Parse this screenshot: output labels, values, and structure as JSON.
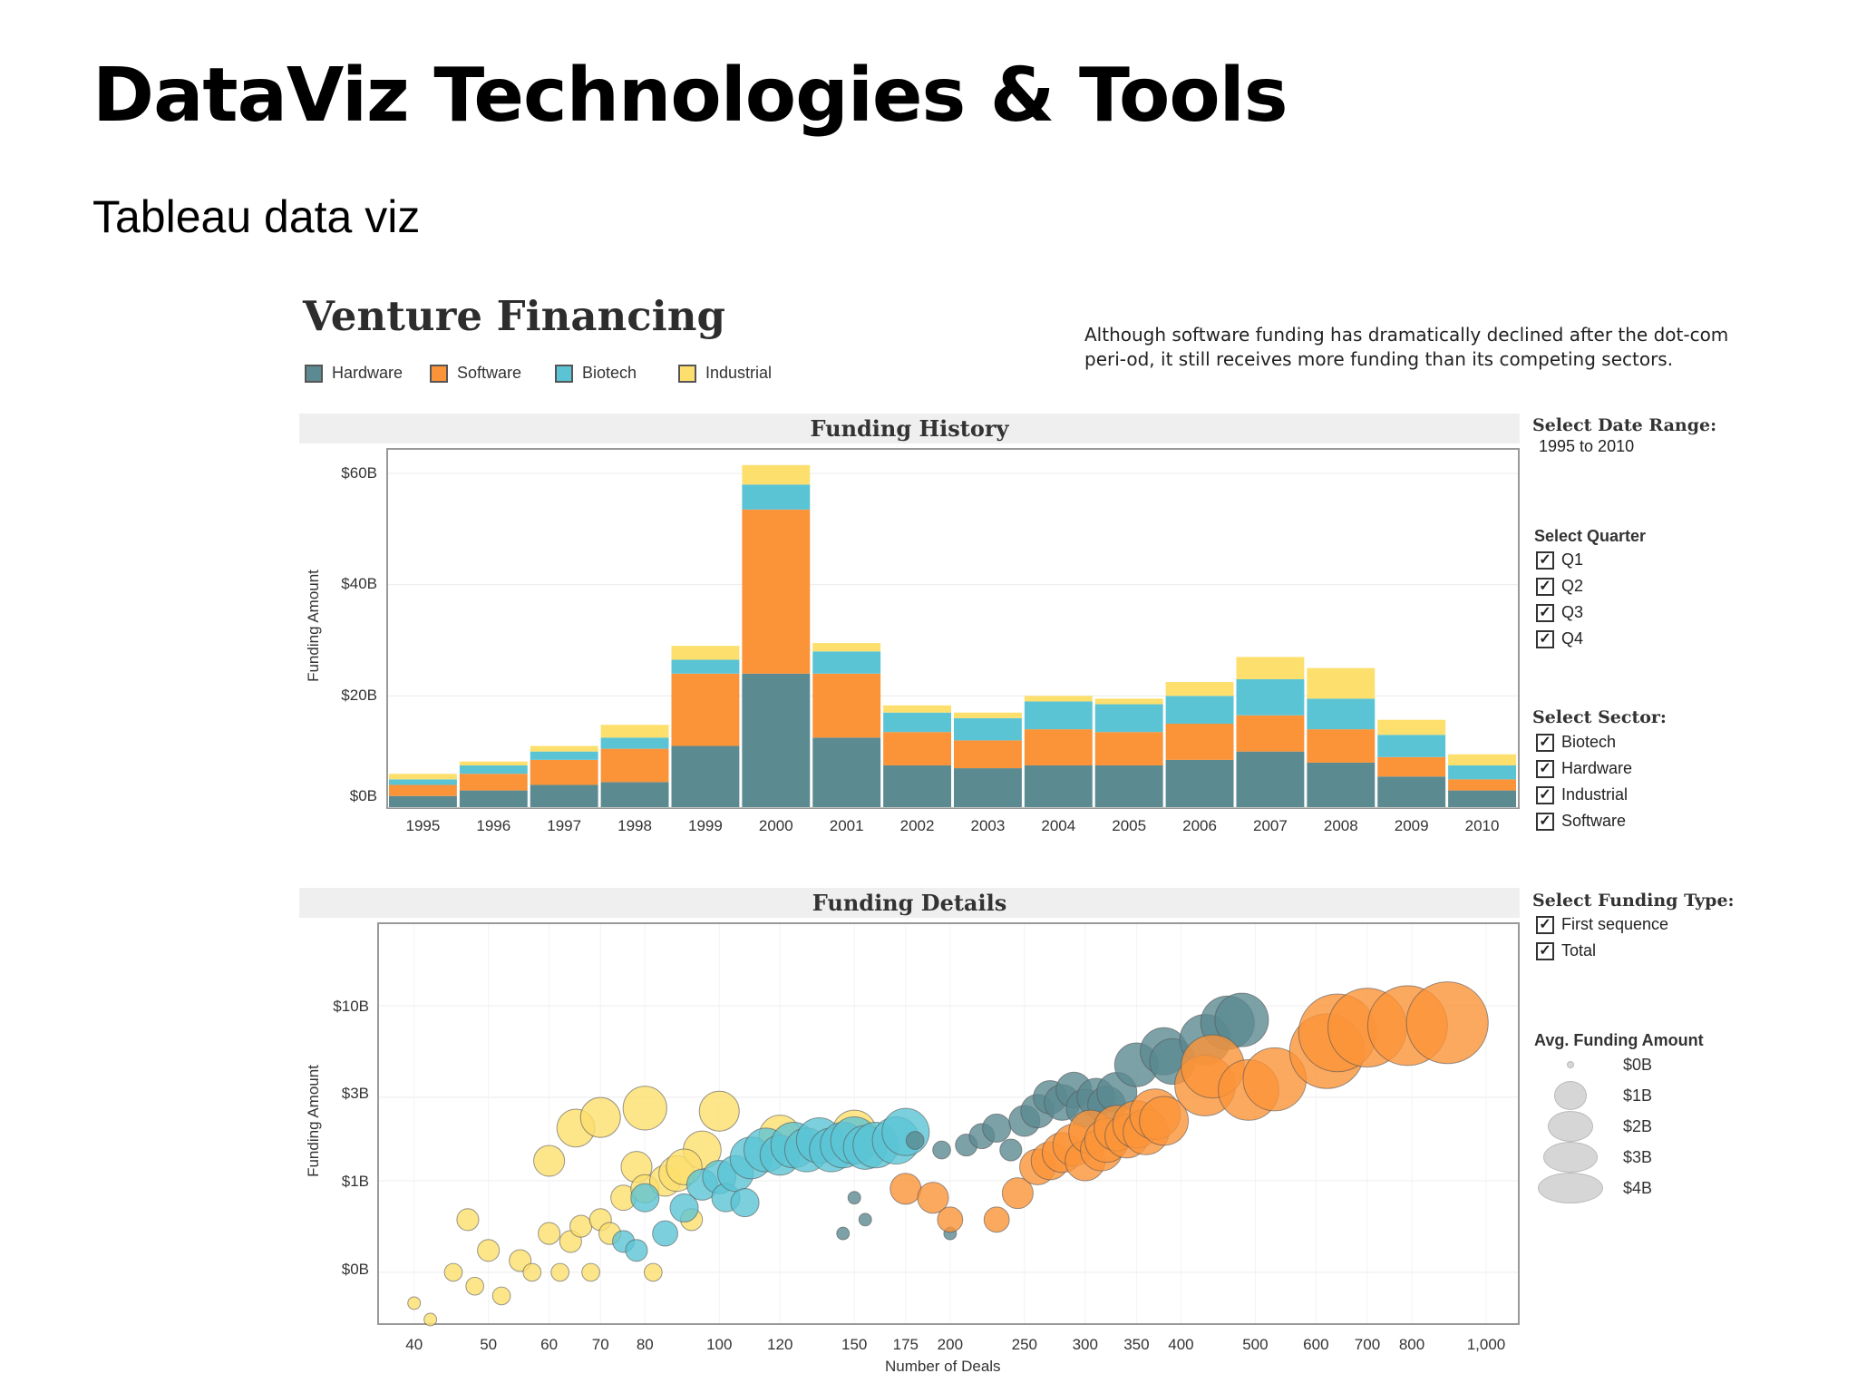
{
  "slide": {
    "title": "DataViz Technologies & Tools",
    "subtitle": "Tableau data viz"
  },
  "dashboard": {
    "title": "Venture Financing",
    "annotation": "Although software funding has dramatically declined after the dot-com peri-od, it still receives more funding than its competing sectors.",
    "legend": [
      {
        "label": "Hardware",
        "color": "#5b8a91"
      },
      {
        "label": "Software",
        "color": "#fb9338"
      },
      {
        "label": "Biotech",
        "color": "#5bc4d4"
      },
      {
        "label": "Industrial",
        "color": "#fddf6d"
      }
    ]
  },
  "funding_history": {
    "header": "Funding History",
    "y_axis_title": "Funding Amount",
    "y_ticks": [
      "$60B",
      "$40B",
      "$20B",
      "$0B"
    ]
  },
  "funding_details": {
    "header": "Funding Details",
    "y_axis_title": "Funding Amount",
    "x_axis_title": "Number of Deals",
    "y_ticks": [
      "$10B",
      "$3B",
      "$1B",
      "$0B"
    ],
    "x_ticks": [
      "40",
      "50",
      "60",
      "70",
      "80",
      "100",
      "120",
      "150",
      "175",
      "200",
      "250",
      "300",
      "350",
      "400",
      "500",
      "600",
      "700",
      "800",
      "1,000"
    ]
  },
  "controls": {
    "date_range": {
      "label": "Select Date Range:",
      "value": "1995 to 2010"
    },
    "quarter": {
      "label": "Select Quarter",
      "options": [
        {
          "label": "Q1",
          "checked": true
        },
        {
          "label": "Q2",
          "checked": true
        },
        {
          "label": "Q3",
          "checked": true
        },
        {
          "label": "Q4",
          "checked": true
        }
      ]
    },
    "sector": {
      "label": "Select Sector:",
      "options": [
        {
          "label": "Biotech",
          "checked": true
        },
        {
          "label": "Hardware",
          "checked": true
        },
        {
          "label": "Industrial",
          "checked": true
        },
        {
          "label": "Software",
          "checked": true
        }
      ]
    },
    "funding_type": {
      "label": "Select Funding Type:",
      "options": [
        {
          "label": "First sequence",
          "checked": true
        },
        {
          "label": "Total",
          "checked": true
        }
      ]
    },
    "size_legend": {
      "label": "Avg. Funding Amount",
      "entries": [
        "$0B",
        "$1B",
        "$2B",
        "$3B",
        "$4B"
      ]
    }
  },
  "chart_data": [
    {
      "type": "bar",
      "title": "Funding History",
      "ylabel": "Funding Amount",
      "ylim": [
        0,
        64
      ],
      "units": "billions USD",
      "stacked": true,
      "categories": [
        "1995",
        "1996",
        "1997",
        "1998",
        "1999",
        "2000",
        "2001",
        "2002",
        "2003",
        "2004",
        "2005",
        "2006",
        "2007",
        "2008",
        "2009",
        "2010"
      ],
      "series": [
        {
          "name": "Hardware",
          "color": "#5b8a91",
          "values": [
            2,
            3,
            4,
            4.5,
            11,
            24,
            12.5,
            7.5,
            7,
            7.5,
            7.5,
            8.5,
            10,
            8,
            5.5,
            3
          ]
        },
        {
          "name": "Software",
          "color": "#fb9338",
          "values": [
            2,
            3,
            4.5,
            6,
            13,
            29.5,
            11.5,
            6,
            5,
            6.5,
            6,
            6.5,
            6.5,
            6,
            3.5,
            2
          ]
        },
        {
          "name": "Biotech",
          "color": "#5bc4d4",
          "values": [
            1,
            1.5,
            1.5,
            2,
            2.5,
            4.5,
            4,
            3.5,
            4,
            5,
            5,
            5,
            6.5,
            5.5,
            4,
            2.5
          ]
        },
        {
          "name": "Industrial",
          "color": "#fddf6d",
          "values": [
            1,
            0.7,
            1,
            2.3,
            2.5,
            3.5,
            1.5,
            1.3,
            1,
            1,
            1,
            2.5,
            4,
            5.5,
            2.7,
            2
          ]
        }
      ]
    },
    {
      "type": "scatter",
      "title": "Funding Details",
      "xlabel": "Number of Deals",
      "ylabel": "Funding Amount",
      "x_scale": "log",
      "y_scale": "log",
      "xlim": [
        40,
        1000
      ],
      "size_by": "Avg. Funding Amount",
      "series": [
        {
          "name": "Industrial",
          "color": "#fddf6d",
          "points": [
            [
              40,
              0.2,
              0.1
            ],
            [
              42,
              0.15,
              0.1
            ],
            [
              45,
              0.3,
              0.2
            ],
            [
              47,
              0.6,
              0.3
            ],
            [
              48,
              0.25,
              0.2
            ],
            [
              50,
              0.4,
              0.3
            ],
            [
              52,
              0.22,
              0.2
            ],
            [
              55,
              0.35,
              0.3
            ],
            [
              57,
              0.3,
              0.2
            ],
            [
              60,
              0.5,
              0.3
            ],
            [
              62,
              0.3,
              0.2
            ],
            [
              64,
              0.45,
              0.3
            ],
            [
              66,
              0.55,
              0.3
            ],
            [
              68,
              0.3,
              0.2
            ],
            [
              70,
              0.6,
              0.3
            ],
            [
              72,
              0.5,
              0.3
            ],
            [
              75,
              0.8,
              0.4
            ],
            [
              78,
              1.2,
              0.6
            ],
            [
              80,
              0.9,
              0.5
            ],
            [
              82,
              0.3,
              0.2
            ],
            [
              60,
              1.3,
              0.6
            ],
            [
              65,
              2.0,
              0.9
            ],
            [
              70,
              2.3,
              1.0
            ],
            [
              80,
              2.6,
              1.2
            ],
            [
              85,
              1.0,
              0.6
            ],
            [
              88,
              1.1,
              0.8
            ],
            [
              92,
              0.6,
              0.3
            ],
            [
              95,
              1.5,
              0.9
            ],
            [
              100,
              2.5,
              1.0
            ],
            [
              90,
              1.2,
              0.8
            ],
            [
              120,
              1.8,
              1.1
            ],
            [
              150,
              1.9,
              1.2
            ]
          ]
        },
        {
          "name": "Biotech",
          "color": "#5bc4d4",
          "points": [
            [
              75,
              0.45,
              0.3
            ],
            [
              78,
              0.4,
              0.3
            ],
            [
              80,
              0.8,
              0.5
            ],
            [
              85,
              0.5,
              0.4
            ],
            [
              90,
              0.7,
              0.5
            ],
            [
              95,
              0.95,
              0.6
            ],
            [
              100,
              1.05,
              0.7
            ],
            [
              102,
              0.8,
              0.5
            ],
            [
              105,
              1.1,
              0.8
            ],
            [
              108,
              0.75,
              0.5
            ],
            [
              110,
              1.35,
              1.1
            ],
            [
              115,
              1.5,
              1.2
            ],
            [
              120,
              1.4,
              1.0
            ],
            [
              125,
              1.6,
              1.3
            ],
            [
              130,
              1.5,
              1.2
            ],
            [
              135,
              1.7,
              1.3
            ],
            [
              140,
              1.5,
              1.2
            ],
            [
              145,
              1.6,
              1.3
            ],
            [
              150,
              1.7,
              1.4
            ],
            [
              155,
              1.55,
              1.2
            ],
            [
              160,
              1.6,
              1.3
            ],
            [
              170,
              1.7,
              1.4
            ],
            [
              175,
              1.9,
              1.4
            ]
          ]
        },
        {
          "name": "Hardware",
          "color": "#5b8a91",
          "points": [
            [
              145,
              0.5,
              0.1
            ],
            [
              150,
              0.8,
              0.1
            ],
            [
              155,
              0.6,
              0.1
            ],
            [
              180,
              1.7,
              0.2
            ],
            [
              195,
              1.5,
              0.2
            ],
            [
              200,
              0.5,
              0.1
            ],
            [
              210,
              1.6,
              0.3
            ],
            [
              220,
              1.8,
              0.4
            ],
            [
              230,
              2.0,
              0.5
            ],
            [
              240,
              1.5,
              0.3
            ],
            [
              250,
              2.2,
              0.6
            ],
            [
              260,
              2.5,
              0.7
            ],
            [
              270,
              3.0,
              0.7
            ],
            [
              280,
              2.8,
              0.8
            ],
            [
              290,
              3.3,
              0.8
            ],
            [
              300,
              2.6,
              0.9
            ],
            [
              310,
              3.0,
              0.9
            ],
            [
              320,
              2.7,
              0.9
            ],
            [
              330,
              3.2,
              1.0
            ],
            [
              350,
              4.6,
              1.2
            ],
            [
              380,
              5.5,
              1.4
            ],
            [
              390,
              4.8,
              1.3
            ],
            [
              430,
              6.4,
              1.6
            ],
            [
              460,
              8.0,
              1.8
            ],
            [
              480,
              8.3,
              1.8
            ]
          ]
        },
        {
          "name": "Software",
          "color": "#fb9338",
          "points": [
            [
              175,
              0.9,
              0.6
            ],
            [
              190,
              0.8,
              0.6
            ],
            [
              200,
              0.6,
              0.4
            ],
            [
              230,
              0.6,
              0.4
            ],
            [
              245,
              0.85,
              0.6
            ],
            [
              260,
              1.2,
              0.8
            ],
            [
              270,
              1.3,
              0.9
            ],
            [
              280,
              1.45,
              1.0
            ],
            [
              290,
              1.6,
              1.1
            ],
            [
              300,
              1.3,
              1.0
            ],
            [
              305,
              1.9,
              1.2
            ],
            [
              315,
              1.5,
              1.1
            ],
            [
              320,
              1.7,
              1.2
            ],
            [
              330,
              2.0,
              1.3
            ],
            [
              340,
              1.8,
              1.2
            ],
            [
              350,
              2.1,
              1.4
            ],
            [
              360,
              1.9,
              1.3
            ],
            [
              370,
              2.4,
              1.6
            ],
            [
              380,
              2.2,
              1.5
            ],
            [
              430,
              3.5,
              2.3
            ],
            [
              440,
              4.5,
              2.5
            ],
            [
              490,
              3.3,
              2.3
            ],
            [
              530,
              3.8,
              2.5
            ],
            [
              620,
              5.5,
              3.5
            ],
            [
              640,
              7.0,
              3.8
            ],
            [
              700,
              7.5,
              3.9
            ],
            [
              790,
              7.7,
              4.0
            ],
            [
              890,
              8.0,
              4.2
            ]
          ]
        }
      ]
    }
  ]
}
